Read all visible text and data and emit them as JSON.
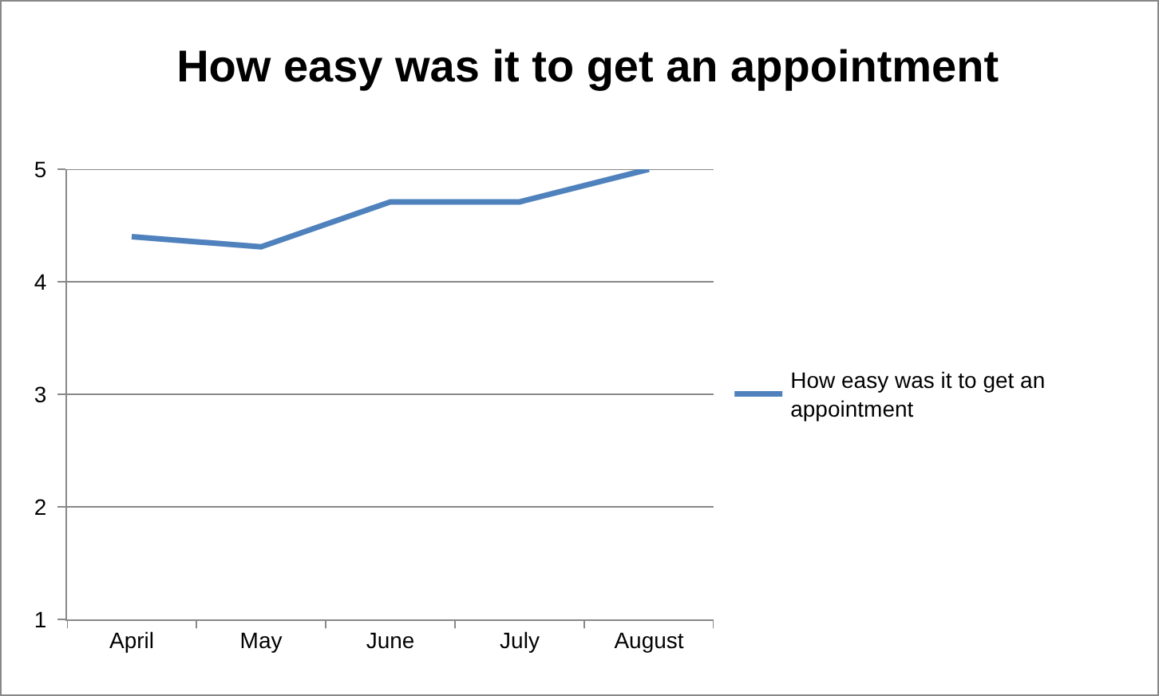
{
  "chart_data": {
    "type": "line",
    "title": "How easy was it to get an appointment",
    "categories": [
      "April",
      "May",
      "June",
      "July",
      "August"
    ],
    "series": [
      {
        "name": "How easy was it to get an appointment",
        "color": "#4f81bd",
        "values": [
          4.4,
          4.31,
          4.71,
          4.71,
          5.0
        ]
      }
    ],
    "ylim": [
      1,
      5
    ],
    "yticks": [
      1,
      2,
      3,
      4,
      5
    ],
    "grid": "y",
    "legend": "right",
    "marker": "none",
    "line_style": "solid"
  }
}
